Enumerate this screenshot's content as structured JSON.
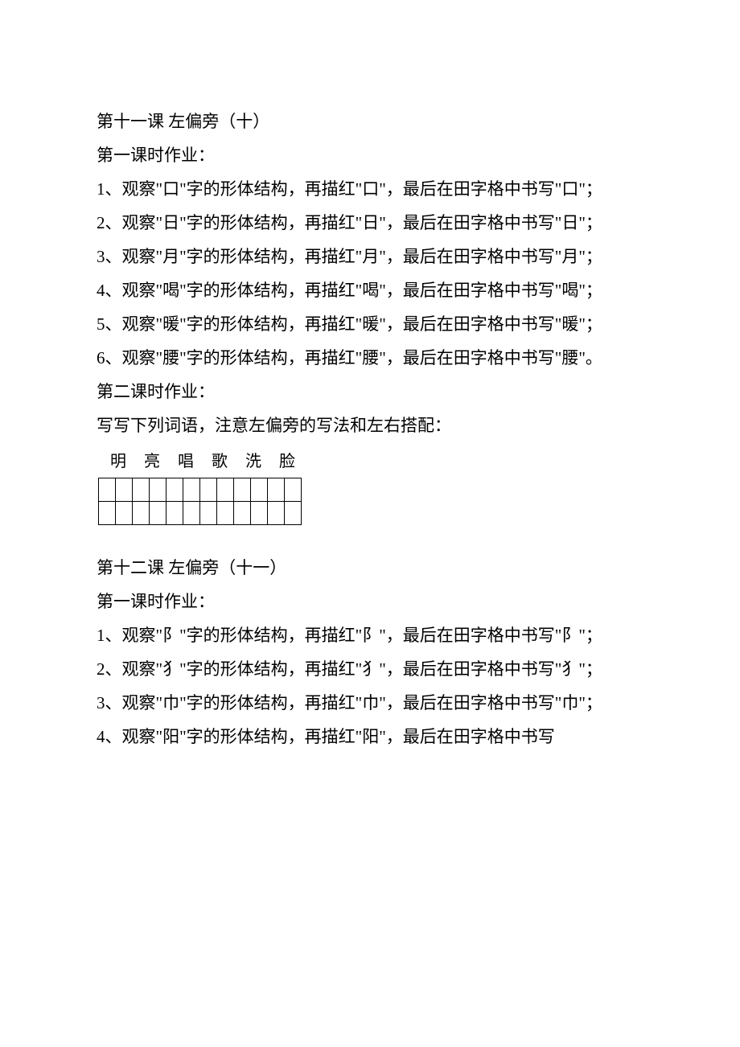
{
  "lesson11": {
    "title": "第十一课 左偏旁（十）",
    "period1_label": "第一课时作业：",
    "items": [
      "1、观察\"口\"字的形体结构，再描红\"口\"，最后在田字格中书写\"口\"；",
      "2、观察\"日\"字的形体结构，再描红\"日\"，最后在田字格中书写\"日\"；",
      "3、观察\"月\"字的形体结构，再描红\"月\"，最后在田字格中书写\"月\"；",
      "4、观察\"喝\"字的形体结构，再描红\"喝\"，最后在田字格中书写\"喝\"；",
      "5、观察\"暖\"字的形体结构，再描红\"暖\"，最后在田字格中书写\"暖\"；",
      "6、观察\"腰\"字的形体结构，再描红\"腰\"，最后在田字格中书写\"腰\"。"
    ],
    "period2_label": "第二课时作业：",
    "period2_instruction": "写写下列词语，注意左偏旁的写法和左右搭配：",
    "grid_chars": [
      "明",
      "亮",
      "唱",
      "歌",
      "洗",
      "脸"
    ],
    "grid": {
      "rows": 2,
      "cols": 12
    }
  },
  "lesson12": {
    "title": "第十二课 左偏旁（十一）",
    "period1_label": "第一课时作业：",
    "items": [
      "1、观察\"阝\"字的形体结构，再描红\"阝\"，最后在田字格中书写\"阝\"；",
      "2、观察\"犭\"字的形体结构，再描红\"犭\"，最后在田字格中书写\"犭\"；",
      "3、观察\"巾\"字的形体结构，再描红\"巾\"，最后在田字格中书写\"巾\"；",
      "4、观察\"阳\"字的形体结构，再描红\"阳\"，最后在田字格中书写"
    ]
  }
}
